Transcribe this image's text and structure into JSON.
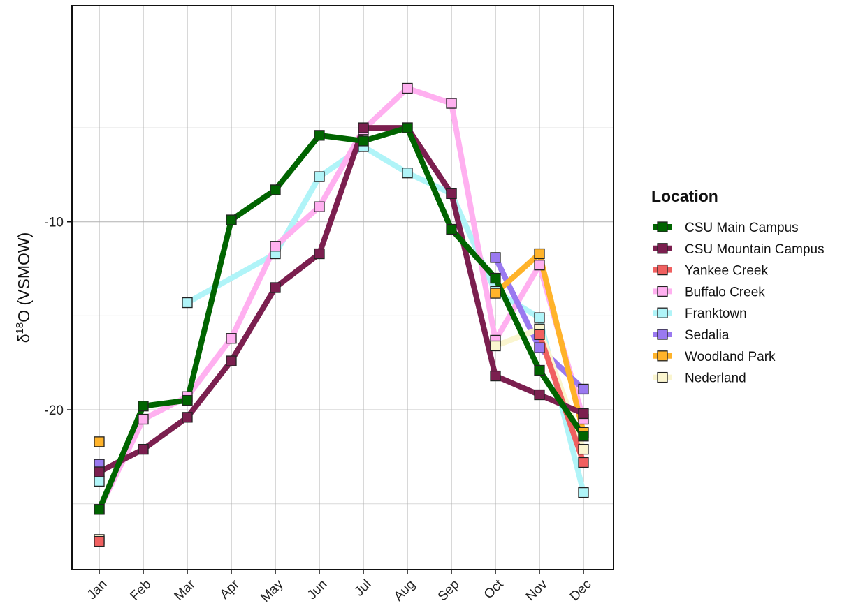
{
  "chart_data": {
    "type": "line",
    "xlabel": "",
    "ylabel_base": "δ",
    "ylabel_sup": "18",
    "ylabel_rest": "O (VSMOW)",
    "categories": [
      "Jan",
      "Feb",
      "Mar",
      "Apr",
      "May",
      "Jun",
      "Jul",
      "Aug",
      "Sep",
      "Oct",
      "Nov",
      "Dec"
    ],
    "yticks": [
      -10,
      -20
    ],
    "ylim": [
      -28.5,
      1.5
    ],
    "grid": true,
    "legend": {
      "title": "Location",
      "position": "right"
    },
    "series": [
      {
        "name": "CSU Main Campus",
        "color": "#006400",
        "values": [
          -25.3,
          -19.8,
          -19.5,
          -9.9,
          -8.3,
          -5.4,
          -5.7,
          -5.0,
          -10.4,
          -13.0,
          -17.9,
          -21.4
        ]
      },
      {
        "name": "CSU Mountain Campus",
        "color": "#7B1F4F",
        "values": [
          -23.3,
          -22.1,
          -20.4,
          -17.4,
          -13.5,
          -11.7,
          -5.0,
          -5.0,
          -8.5,
          -18.2,
          -19.2,
          -20.2
        ]
      },
      {
        "name": "Yankee Creek",
        "color": "#F06060",
        "values": [
          -27.0,
          null,
          null,
          null,
          null,
          null,
          null,
          null,
          null,
          null,
          -16.0,
          -22.8
        ]
      },
      {
        "name": "Buffalo Creek",
        "color": "#FFB0F0",
        "values": [
          -25.3,
          -20.5,
          -19.3,
          -16.2,
          -11.3,
          -9.2,
          -5.1,
          -2.9,
          -3.7,
          -16.3,
          -12.3,
          -20.5
        ]
      },
      {
        "name": "Franktown",
        "color": "#B0F4F8",
        "values": [
          -23.8,
          null,
          -14.3,
          null,
          -11.7,
          -7.6,
          -6.0,
          -7.4,
          -8.5,
          -13.7,
          -15.1,
          -24.4
        ]
      },
      {
        "name": "Sedalia",
        "color": "#9A79F0",
        "values": [
          -22.9,
          null,
          null,
          null,
          null,
          null,
          null,
          null,
          null,
          -11.9,
          -16.7,
          -18.9
        ]
      },
      {
        "name": "Woodland Park",
        "color": "#FFB32A",
        "values": [
          -21.7,
          null,
          null,
          null,
          null,
          null,
          null,
          null,
          null,
          -13.8,
          -11.7,
          -21.2
        ]
      },
      {
        "name": "Nederland",
        "color": "#FAF5CF",
        "values": [
          -26.9,
          null,
          null,
          null,
          null,
          null,
          null,
          null,
          null,
          -16.6,
          -15.7,
          -22.1
        ]
      }
    ]
  }
}
